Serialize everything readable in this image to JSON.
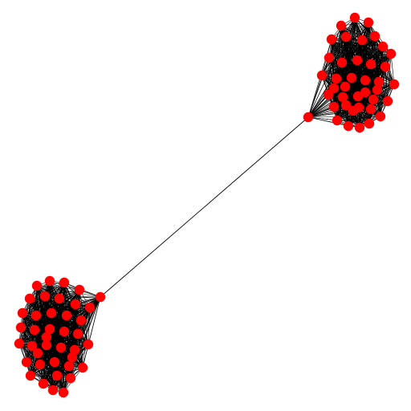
{
  "colors": {
    "node": "#ff0000",
    "edge": "#000000",
    "background": "#ffffff"
  },
  "graph": {
    "type": "barbell",
    "clusters": [
      {
        "name": "top-right-clique",
        "node_count": 40,
        "edges": "complete"
      },
      {
        "name": "bottom-left-clique",
        "node_count": 40,
        "edges": "complete"
      }
    ],
    "bridge": {
      "from": "top-right-clique",
      "to": "bottom-left-clique",
      "path_nodes": 0
    }
  }
}
